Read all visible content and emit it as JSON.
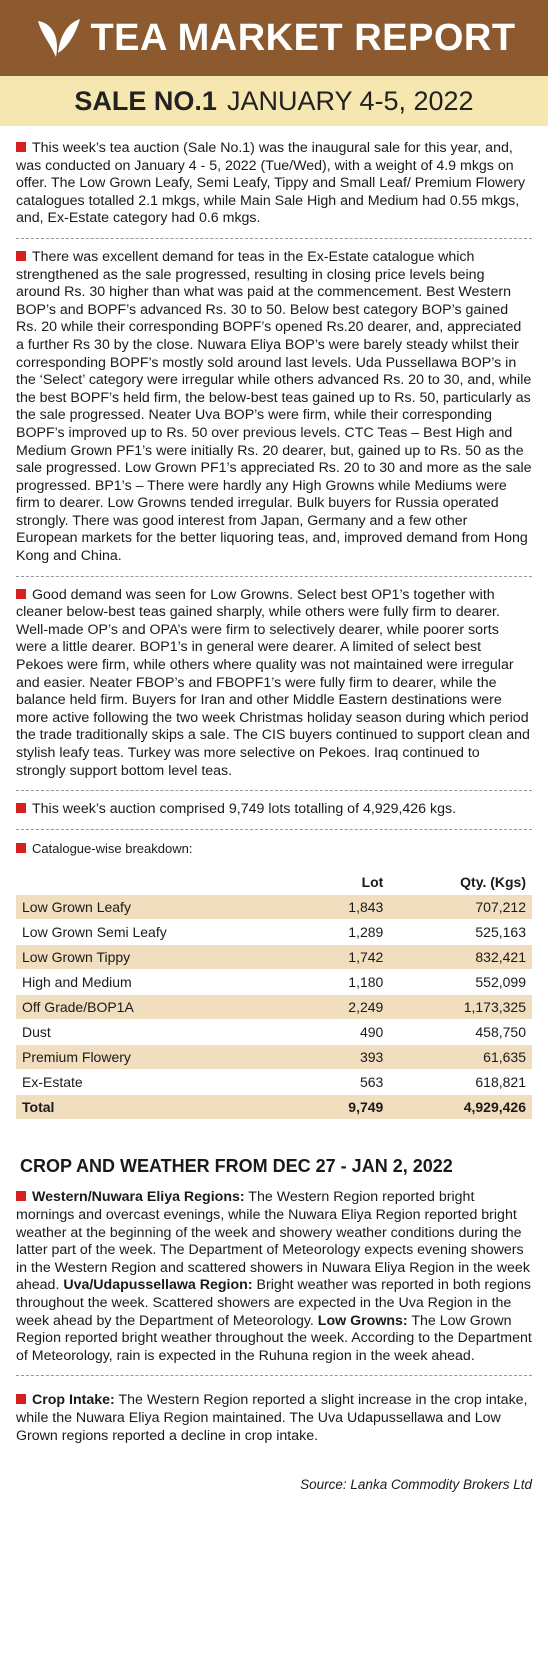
{
  "header": {
    "title": "TEA MARKET REPORT",
    "sale_number": "SALE NO.1",
    "sale_date": "JANUARY 4-5, 2022"
  },
  "paragraphs": [
    "This week’s tea auction (Sale No.1) was the inaugural sale for this year, and, was conducted on January 4 - 5, 2022 (Tue/Wed), with a weight of 4.9 mkgs on offer. The Low Grown Leafy, Semi Leafy, Tippy and Small Leaf/ Premium Flowery catalogues totalled 2.1 mkgs, while Main Sale High and Medium had 0.55 mkgs, and, Ex-Estate category had 0.6 mkgs.",
    "There was excellent demand for teas in the Ex-Estate catalogue which strengthened as the sale progressed, resulting in closing price levels being around Rs. 30 higher than what was paid at the commencement. Best Western BOP’s and BOPF’s advanced Rs. 30 to 50. Below best category BOP’s gained Rs. 20 while their corresponding BOPF’s opened Rs.20 dearer, and, appreciated a further Rs 30 by the close. Nuwara Eliya BOP’s were barely steady whilst their corresponding BOPF’s mostly sold around last levels. Uda Pussellawa BOP’s in the ‘Select’ category were irregular while others advanced Rs. 20 to 30, and, while the best BOPF’s held firm, the below-best teas gained up to Rs. 50, particularly as the sale progressed. Neater Uva BOP’s were firm, while their corresponding BOPF’s improved up to Rs. 50 over previous levels. CTC Teas – Best High and Medium Grown PF1’s were initially Rs. 20 dearer, but, gained up to Rs. 50 as the sale progressed. Low Grown PF1’s appreciated Rs. 20 to 30 and more as the sale progressed. BP1’s – There were hardly any High Growns while Mediums were firm to dearer. Low Growns tended irregular. Bulk buyers for Russia operated strongly. There was good interest from Japan, Germany and a few other European markets for the better liquoring teas, and, improved demand from Hong Kong and China.",
    "Good demand was seen for Low Growns. Select best OP1’s together with cleaner below-best teas gained sharply, while others were fully firm to dearer. Well-made OP’s and OPA’s were firm to selectively dearer, while poorer sorts were a little dearer. BOP1’s in general were dearer. A limited of select best Pekoes were firm, while others where quality was not maintained were irregular and easier. Neater FBOP’s and FBOPF1’s were fully firm to dearer, while the balance held firm. Buyers for Iran and other Middle Eastern destinations were more active following the two week Christmas holiday season during which period the trade traditionally skips a sale. The CIS buyers continued to support clean and stylish leafy teas. Turkey was more selective on Pekoes. Iraq continued to strongly support bottom level teas.",
    "This week’s auction comprised 9,749 lots totalling of 4,929,426 kgs."
  ],
  "table": {
    "caption": "Catalogue-wise breakdown:",
    "columns": [
      "Lot",
      "Qty. (Kgs)"
    ],
    "rows": [
      [
        "Low Grown Leafy",
        "1,843",
        "707,212"
      ],
      [
        "Low Grown Semi Leafy",
        "1,289",
        "525,163"
      ],
      [
        "Low Grown Tippy",
        "1,742",
        "832,421"
      ],
      [
        "High and Medium",
        "1,180",
        "552,099"
      ],
      [
        "Off Grade/BOP1A",
        "2,249",
        "1,173,325"
      ],
      [
        "Dust",
        "490",
        "458,750"
      ],
      [
        "Premium Flowery",
        "393",
        "61,635"
      ],
      [
        "Ex-Estate",
        "563",
        "618,821"
      ]
    ],
    "total": [
      "Total",
      "9,749",
      "4,929,426"
    ]
  },
  "weather": {
    "heading": "CROP AND WEATHER FROM  DEC 27 - JAN 2, 2022",
    "items": [
      {
        "label": "Western/Nuwara Eliya Regions:",
        "text": " The Western Region reported bright mornings and overcast evenings, while the Nuwara Eliya Region reported bright weather at the beginning of the week and showery weather conditions during the latter part of the week. The Department of Meteorology expects evening showers in the Western Region and scattered showers in Nuwara Eliya Region in the week ahead. "
      },
      {
        "label": "Uva/Udapussellawa Region:",
        "text": " Bright weather was reported in both regions throughout the week. Scattered showers are expected in the Uva Region in the week ahead by the Department of Meteorology. "
      },
      {
        "label": "Low Growns:",
        "text": " The Low Grown Region reported bright weather throughout the week. According to the Department of Meteorology, rain is expected in the Ruhuna region in the week ahead."
      }
    ],
    "crop": {
      "label": "Crop Intake:",
      "text": " The Western Region reported a slight increase in the crop intake, while the Nuwara Eliya Region maintained. The Uva Udapussellawa and Low Grown regions reported a decline in crop intake."
    }
  },
  "source": "Source: Lanka Commodity Brokers Ltd"
}
